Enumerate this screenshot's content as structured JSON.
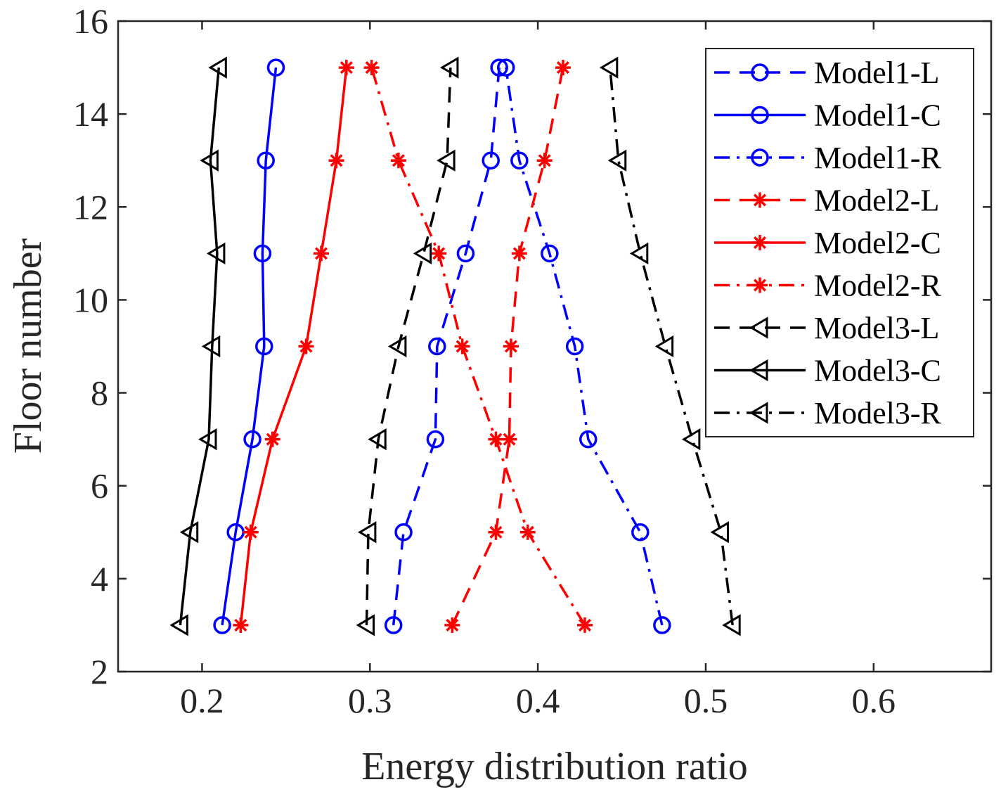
{
  "chart_data": {
    "type": "line",
    "title": "",
    "xlabel": "Energy distribution ratio",
    "ylabel": "Floor number",
    "xlim": [
      0.15,
      0.67
    ],
    "ylim": [
      2,
      16
    ],
    "xticks": [
      0.2,
      0.3,
      0.4,
      0.5,
      0.6
    ],
    "xtick_labels": [
      "0.2",
      "0.3",
      "0.4",
      "0.5",
      "0.6"
    ],
    "yticks": [
      2,
      4,
      6,
      8,
      10,
      12,
      14,
      16
    ],
    "ytick_labels": [
      "2",
      "4",
      "6",
      "8",
      "10",
      "12",
      "14",
      "16"
    ],
    "grid": false,
    "legend_position": "top-right",
    "y": [
      3,
      5,
      7,
      9,
      11,
      13,
      15
    ],
    "series": [
      {
        "name": "Model1-L",
        "color": "#0000ff",
        "line_style": "dashed",
        "marker": "circle",
        "x": [
          0.314,
          0.32,
          0.339,
          0.34,
          0.357,
          0.372,
          0.377
        ]
      },
      {
        "name": "Model1-C",
        "color": "#0000ff",
        "line_style": "solid",
        "marker": "circle",
        "x": [
          0.212,
          0.22,
          0.23,
          0.237,
          0.236,
          0.238,
          0.244
        ]
      },
      {
        "name": "Model1-R",
        "color": "#0000ff",
        "line_style": "dashdot",
        "marker": "circle",
        "x": [
          0.474,
          0.461,
          0.43,
          0.422,
          0.407,
          0.389,
          0.381
        ]
      },
      {
        "name": "Model2-L",
        "color": "#ff0000",
        "line_style": "dashed",
        "marker": "asterisk",
        "x": [
          0.349,
          0.375,
          0.383,
          0.384,
          0.389,
          0.404,
          0.415
        ]
      },
      {
        "name": "Model2-C",
        "color": "#ff0000",
        "line_style": "solid",
        "marker": "asterisk",
        "x": [
          0.223,
          0.229,
          0.242,
          0.262,
          0.271,
          0.28,
          0.286
        ]
      },
      {
        "name": "Model2-R",
        "color": "#ff0000",
        "line_style": "dashdot",
        "marker": "asterisk",
        "x": [
          0.428,
          0.394,
          0.375,
          0.355,
          0.341,
          0.317,
          0.301
        ]
      },
      {
        "name": "Model3-L",
        "color": "#000000",
        "line_style": "dashed",
        "marker": "triangle-left",
        "x": [
          0.298,
          0.299,
          0.305,
          0.317,
          0.332,
          0.346,
          0.348
        ]
      },
      {
        "name": "Model3-C",
        "color": "#000000",
        "line_style": "solid",
        "marker": "triangle-left",
        "x": [
          0.187,
          0.193,
          0.204,
          0.206,
          0.209,
          0.205,
          0.21
        ]
      },
      {
        "name": "Model3-R",
        "color": "#000000",
        "line_style": "dashdot",
        "marker": "triangle-left",
        "x": [
          0.516,
          0.509,
          0.492,
          0.476,
          0.461,
          0.448,
          0.443
        ]
      }
    ]
  }
}
